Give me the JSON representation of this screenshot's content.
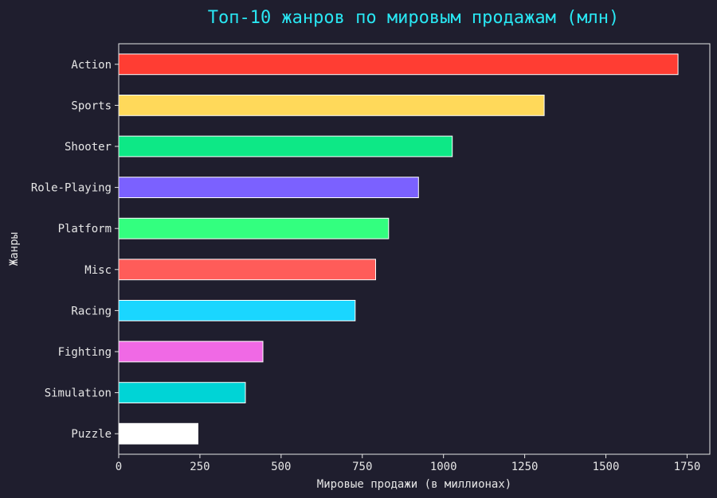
{
  "chart_data": {
    "type": "bar",
    "orientation": "horizontal",
    "title": "Топ-10 жанров по мировым продажам (млн)",
    "xlabel": "Мировые продажи (в миллионах)",
    "ylabel": "Жанры",
    "xlim": [
      0,
      1820
    ],
    "xticks": [
      0,
      250,
      500,
      750,
      1000,
      1250,
      1500,
      1750
    ],
    "grid": false,
    "categories": [
      "Action",
      "Sports",
      "Shooter",
      "Role-Playing",
      "Platform",
      "Misc",
      "Racing",
      "Fighting",
      "Simulation",
      "Puzzle"
    ],
    "values": [
      1722,
      1310,
      1027,
      923,
      831,
      791,
      728,
      444,
      390,
      244
    ],
    "colors": [
      "#ff3d33",
      "#ffd95a",
      "#0de886",
      "#7b61ff",
      "#33ff7f",
      "#ff5c59",
      "#1ad6ff",
      "#f069e5",
      "#00d4d6",
      "#ffffff"
    ],
    "bar_edge_color": "#ffffff",
    "background": "#1f1e2e",
    "title_color": "#29e6f2",
    "text_color": "#e6e6e6"
  }
}
